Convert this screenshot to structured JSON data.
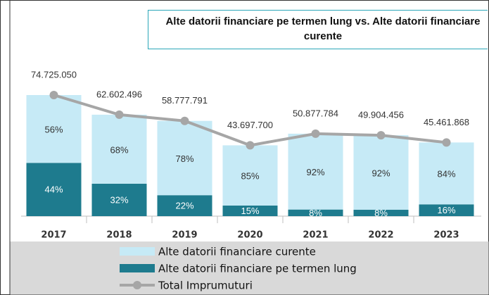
{
  "chart_data": {
    "type": "stacked_bar_line",
    "title": "Alte datorii financiare pe termen lung vs. Alte datorii financiare curente",
    "categories": [
      "2017",
      "2018",
      "2019",
      "2020",
      "2021",
      "2022",
      "2023"
    ],
    "series": [
      {
        "name": "Alte datorii financiare curente",
        "color": "#c6eaf6",
        "values": [
          56,
          68,
          78,
          85,
          92,
          92,
          84
        ],
        "value_labels": [
          "56%",
          "68%",
          "78%",
          "85%",
          "92%",
          "92%",
          "84%"
        ]
      },
      {
        "name": "Alte datorii financiare pe termen lung",
        "color": "#1e7b8e",
        "values": [
          44,
          32,
          22,
          15,
          8,
          8,
          16
        ],
        "value_labels": [
          "44%",
          "32%",
          "22%",
          "15%",
          "8%",
          "8%",
          "16%"
        ]
      },
      {
        "name": "Total Imprumuturi",
        "type": "line",
        "color": "#a6a6a6",
        "values": [
          74725050,
          62602496,
          58777791,
          43697700,
          50877784,
          49904456,
          45461868
        ],
        "value_labels": [
          "74.725.050",
          "62.602.496",
          "58.777.791",
          "43.697.700",
          "50.877.784",
          "49.904.456",
          "45.461.868"
        ]
      }
    ]
  }
}
